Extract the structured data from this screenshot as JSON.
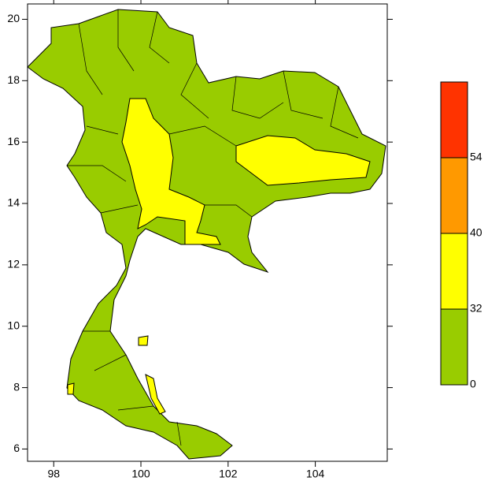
{
  "chart_data": {
    "type": "map",
    "xlim": [
      97.4,
      105.65
    ],
    "xticks": [
      98,
      100,
      102,
      104
    ],
    "ylim": [
      5.6,
      20.5
    ],
    "yticks": [
      6,
      8,
      10,
      12,
      14,
      16,
      18,
      20
    ],
    "legend": {
      "breaks": [
        0,
        32,
        40,
        54
      ],
      "colors": [
        "#99cc00",
        "#ffff00",
        "#ff9900",
        "#ff3300"
      ]
    }
  }
}
